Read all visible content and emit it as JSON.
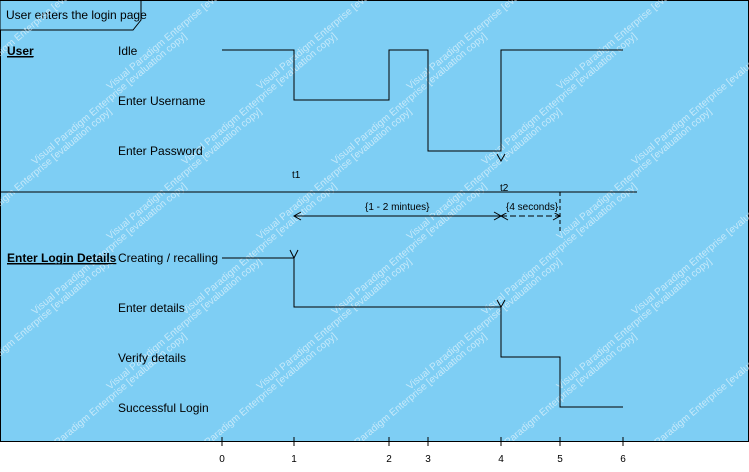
{
  "frame": {
    "title": "User enters the login page",
    "background": "#7ecef4"
  },
  "lifelines": [
    {
      "name": "User",
      "states": [
        "Idle",
        "Enter Username",
        "Enter Password"
      ]
    },
    {
      "name": "Enter Login Details",
      "states": [
        "Creating / recalling",
        "Enter details",
        "Verify details",
        "Successful Login"
      ]
    }
  ],
  "time_axis": {
    "ticks": [
      "0",
      "1",
      "2",
      "3",
      "4",
      "5",
      "6"
    ]
  },
  "markers": {
    "t1": "t1",
    "t2": "t2"
  },
  "constraints": {
    "duration_1": "{1 - 2 mintues}",
    "duration_2": "{4 seconds}"
  },
  "watermark": "Visual Paradigm Enterprise [evaluation copy]"
}
